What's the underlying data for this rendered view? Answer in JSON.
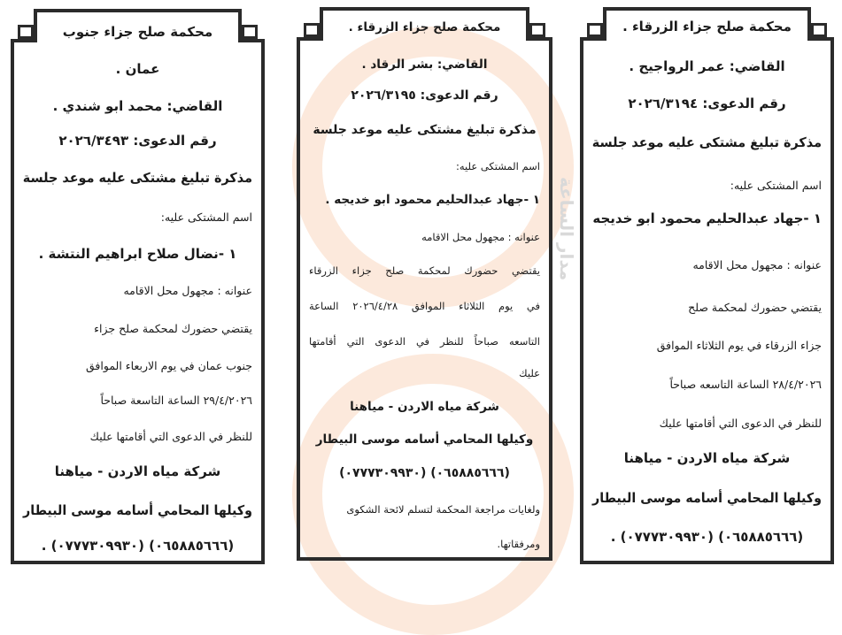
{
  "watermark": {
    "text": "مدار الساعة",
    "clock_color": "#f6c9a9"
  },
  "notices": [
    {
      "lines": [
        "محكمة صلح جزاء الزرقاء .",
        "القاضي: عمر الرواجيح .",
        "رقم الدعوى: ٢٠٢٦/٣١٩٤",
        "مذكرة تبليغ مشتكى عليه موعد جلسة",
        "اسم المشتكى عليه:",
        "١ -جهاد عبدالحليم محمود ابو خديجه",
        "عنوانه : مجهول محل الاقامه",
        "يقتضي حضورك لمحكمة صلح",
        "جزاء الزرقاء في يوم الثلاثاء الموافق",
        "٢٨/٤/٢٠٢٦ الساعة التاسعه صباحاً",
        "للنظر في الدعوى التي أقامتها عليك",
        "شركة مياه الاردن - مياهنا",
        "وكيلها المحامي أسامه موسى البيطار",
        "(٠٦٥٨٨٥٦٦٦) (٠٧٧٧٣٠٩٩٣٠) ."
      ]
    },
    {
      "lines": [
        "محكمة صلح جزاء الزرقاء .",
        "القاضي: بشر الرقاد .",
        "رقم الدعوى: ٢٠٢٦/٣١٩٥",
        "مذكرة تبليغ مشتكى عليه موعد جلسة",
        "اسم المشتكى عليه:",
        "١ -جهاد عبدالحليم محمود ابو خديجه .",
        "عنوانه : مجهول محل الاقامه",
        "يقتضي حضورك لمحكمة صلح جزاء الزرقاء",
        "في يوم الثلاثاء الموافق ٢٠٢٦/٤/٢٨ الساعة",
        "التاسعه صباحاً للنظر في الدعوى التي أقامتها",
        "عليك",
        "شركة مياه الاردن - مياهنا",
        "وكيلها المحامي أسامه موسى البيطار",
        "(٠٦٥٨٨٥٦٦٦) (٠٧٧٧٣٠٩٩٣٠)",
        "ولغايات مراجعة المحكمة لتسلم لائحة الشكوى",
        "ومرفقاتها."
      ]
    },
    {
      "lines": [
        "محكمة صلح جزاء جنوب",
        "عمان .",
        "القاضي: محمد ابو شندي .",
        "رقم الدعوى: ٢٠٢٦/٣٤٩٣",
        "مذكرة تبليغ مشتكى عليه موعد جلسة",
        "اسم المشتكى عليه:",
        "١ -نضال صلاح ابراهيم النتشة .",
        "عنوانه : مجهول محل الاقامه",
        "يقتضي حضورك لمحكمة صلح جزاء",
        "جنوب عمان في يوم الاربعاء الموافق",
        "٢٩/٤/٢٠٢٦ الساعة التاسعة صباحاً",
        "للنظر في الدعوى التي أقامتها عليك",
        "شركة مياه الاردن - مياهنا",
        "وكيلها المحامي أسامه موسى البيطار",
        "(٠٦٥٨٨٥٦٦٦) (٠٧٧٧٣٠٩٩٣٠) ."
      ]
    }
  ]
}
